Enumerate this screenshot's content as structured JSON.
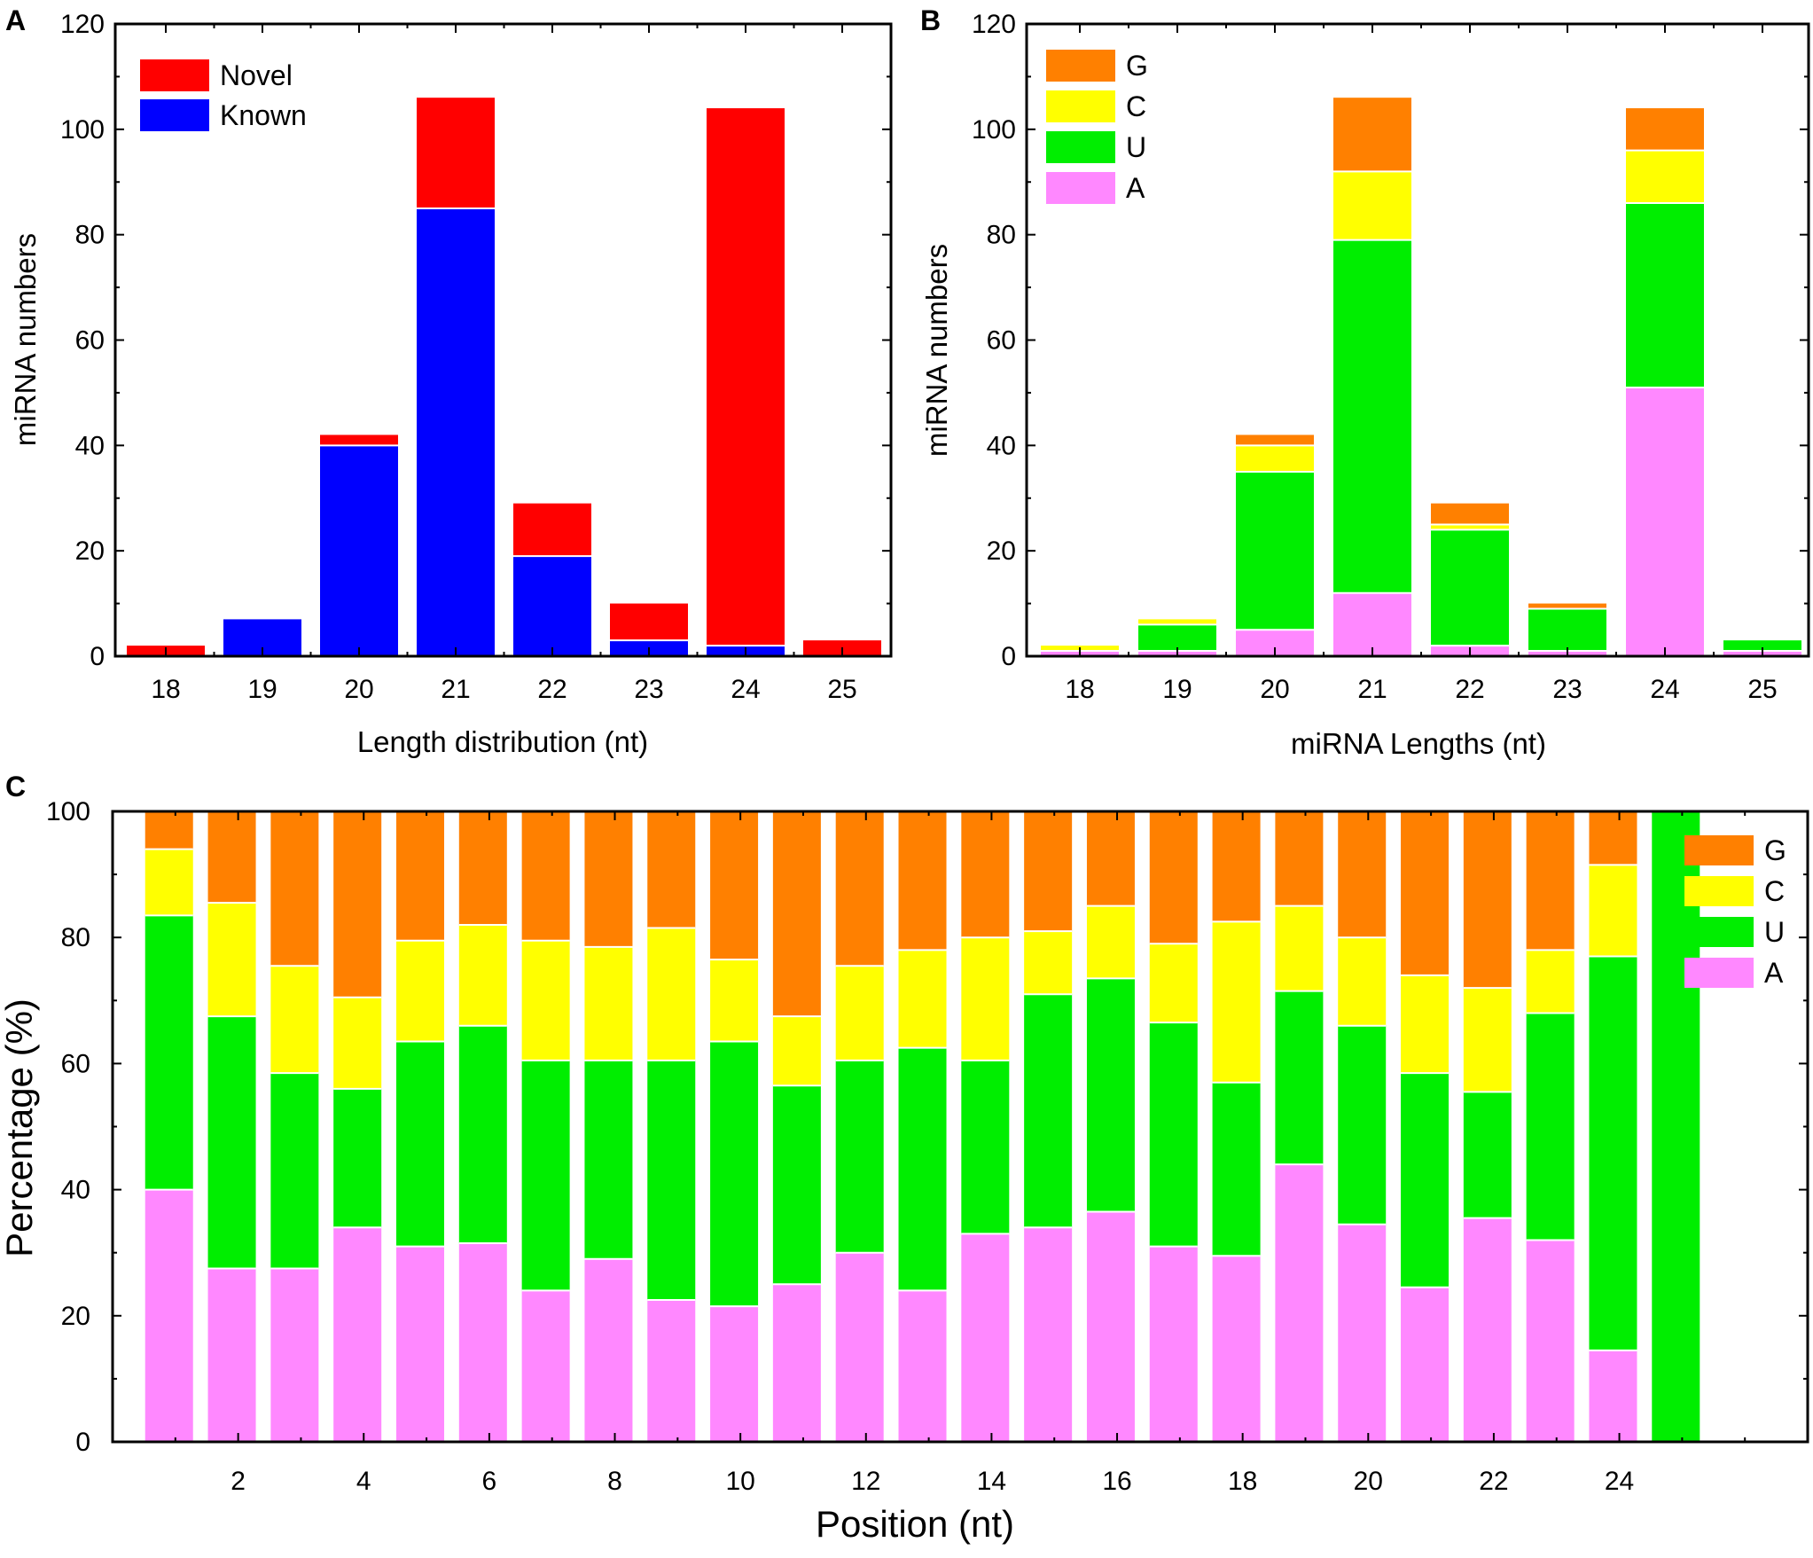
{
  "panels": {
    "a": "A",
    "b": "B",
    "c": "C"
  },
  "colors": {
    "novel": "#ff0000",
    "known": "#0000ff",
    "G": "#ff8000",
    "C": "#ffff00",
    "U": "#00ee00",
    "A": "#ff88ff"
  },
  "chart_data": [
    {
      "id": "A",
      "type": "bar",
      "stacked": true,
      "title": "",
      "xlabel": "Length distribution (nt)",
      "ylabel": "miRNA numbers",
      "ylim": [
        0,
        120
      ],
      "yticks": [
        0,
        20,
        40,
        60,
        80,
        100,
        120
      ],
      "categories": [
        "18",
        "19",
        "20",
        "21",
        "22",
        "23",
        "24",
        "25"
      ],
      "series": [
        {
          "name": "Known",
          "color_key": "known",
          "values": [
            0,
            7,
            40,
            85,
            19,
            3,
            2,
            0
          ]
        },
        {
          "name": "Novel",
          "color_key": "novel",
          "values": [
            2,
            0,
            2,
            21,
            10,
            7,
            102,
            3
          ]
        }
      ],
      "legend": {
        "position": "top-left",
        "order": [
          "Novel",
          "Known"
        ]
      }
    },
    {
      "id": "B",
      "type": "bar",
      "stacked": true,
      "title": "",
      "xlabel": "miRNA Lengths (nt)",
      "ylabel": "miRNA numbers",
      "ylim": [
        0,
        120
      ],
      "yticks": [
        0,
        20,
        40,
        60,
        80,
        100,
        120
      ],
      "categories": [
        "18",
        "19",
        "20",
        "21",
        "22",
        "23",
        "24",
        "25"
      ],
      "series": [
        {
          "name": "A",
          "color_key": "A",
          "values": [
            1,
            1,
            5,
            12,
            2,
            1,
            51,
            1
          ]
        },
        {
          "name": "U",
          "color_key": "U",
          "values": [
            0,
            5,
            30,
            67,
            22,
            8,
            35,
            2
          ]
        },
        {
          "name": "C",
          "color_key": "C",
          "values": [
            1,
            1,
            5,
            13,
            1,
            0,
            10,
            0
          ]
        },
        {
          "name": "G",
          "color_key": "G",
          "values": [
            0,
            0,
            2,
            14,
            4,
            1,
            8,
            0
          ]
        }
      ],
      "legend": {
        "position": "top-left",
        "order": [
          "G",
          "C",
          "U",
          "A"
        ]
      }
    },
    {
      "id": "C",
      "type": "bar",
      "stacked": true,
      "title": "",
      "xlabel": "Position (nt)",
      "ylabel": "Percentage (%)",
      "ylim": [
        0,
        100
      ],
      "yticks": [
        0,
        20,
        40,
        60,
        80,
        100
      ],
      "xlim": [
        0,
        27
      ],
      "xticks": [
        2,
        4,
        6,
        8,
        10,
        12,
        14,
        16,
        18,
        20,
        22,
        24
      ],
      "positions": [
        1,
        2,
        3,
        4,
        5,
        6,
        7,
        8,
        9,
        10,
        11,
        12,
        13,
        14,
        15,
        16,
        17,
        18,
        19,
        20,
        21,
        22,
        23,
        24,
        25
      ],
      "series": [
        {
          "name": "A",
          "color_key": "A",
          "values": [
            40,
            27.5,
            27.5,
            34,
            31,
            31.5,
            24,
            29,
            22.5,
            21.5,
            25,
            30,
            24,
            33,
            34,
            36.5,
            31,
            29.5,
            44,
            34.5,
            24.5,
            35.5,
            32,
            14.5,
            0
          ]
        },
        {
          "name": "U",
          "color_key": "U",
          "values": [
            43.5,
            40,
            31,
            22,
            32.5,
            34.5,
            36.5,
            31.5,
            38,
            42,
            31.5,
            30.5,
            38.5,
            27.5,
            37,
            37,
            35.5,
            27.5,
            27.5,
            31.5,
            34,
            20,
            36,
            62.5,
            100
          ]
        },
        {
          "name": "C",
          "color_key": "C",
          "values": [
            10.5,
            18,
            17,
            14.5,
            16,
            16,
            19,
            18,
            21,
            13,
            11,
            15,
            15.5,
            19.5,
            10,
            11.5,
            12.5,
            25.5,
            13.5,
            14,
            15.5,
            16.5,
            10,
            14.5,
            0
          ]
        },
        {
          "name": "G",
          "color_key": "G",
          "values": [
            6,
            14.5,
            24.5,
            29.5,
            20.5,
            18,
            20.5,
            21.5,
            18.5,
            23.5,
            32.5,
            24.5,
            22,
            20,
            19,
            15,
            21,
            17.5,
            15,
            20,
            26,
            28,
            22,
            8.5,
            0
          ]
        }
      ],
      "legend": {
        "position": "top-right",
        "order": [
          "G",
          "C",
          "U",
          "A"
        ]
      }
    }
  ]
}
